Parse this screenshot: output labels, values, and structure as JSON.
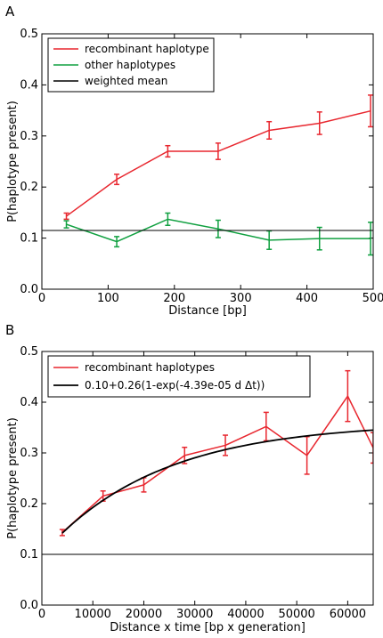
{
  "chart_data": [
    {
      "panel": "A",
      "type": "line",
      "xlabel": "Distance [bp]",
      "ylabel": "P(haplotype present)",
      "xlim": [
        0,
        500
      ],
      "ylim": [
        0.0,
        0.5
      ],
      "xticks": [
        0,
        100,
        200,
        300,
        400,
        500
      ],
      "xtick_labels": [
        "0",
        "100",
        "200",
        "300",
        "400",
        "500"
      ],
      "yticks": [
        0.0,
        0.1,
        0.2,
        0.3,
        0.4,
        0.5
      ],
      "ytick_labels": [
        "0.0",
        "0.1",
        "0.2",
        "0.3",
        "0.4",
        "0.5"
      ],
      "grid": false,
      "legend_position": "top-left",
      "series": [
        {
          "name": "recombinant haplotype",
          "color": "#e8272f",
          "errorbars": true,
          "points": [
            {
              "x": 37,
              "y": 0.143,
              "err": 0.006
            },
            {
              "x": 113,
              "y": 0.215,
              "err": 0.01
            },
            {
              "x": 190,
              "y": 0.27,
              "err": 0.011
            },
            {
              "x": 266,
              "y": 0.27,
              "err": 0.016
            },
            {
              "x": 343,
              "y": 0.311,
              "err": 0.017
            },
            {
              "x": 419,
              "y": 0.325,
              "err": 0.022
            },
            {
              "x": 496,
              "y": 0.349,
              "err": 0.031
            }
          ]
        },
        {
          "name": "other haplotypes",
          "color": "#10a040",
          "errorbars": true,
          "points": [
            {
              "x": 37,
              "y": 0.127,
              "err": 0.007
            },
            {
              "x": 113,
              "y": 0.093,
              "err": 0.01
            },
            {
              "x": 190,
              "y": 0.137,
              "err": 0.012
            },
            {
              "x": 266,
              "y": 0.118,
              "err": 0.017
            },
            {
              "x": 343,
              "y": 0.096,
              "err": 0.018
            },
            {
              "x": 419,
              "y": 0.099,
              "err": 0.022
            },
            {
              "x": 496,
              "y": 0.099,
              "err": 0.032
            }
          ]
        },
        {
          "name": "weighted mean",
          "color": "#000000",
          "hline": 0.115
        }
      ]
    },
    {
      "panel": "B",
      "type": "line",
      "xlabel": "Distance x time [bp x generation]",
      "ylabel": "P(haplotype present)",
      "xlim": [
        0,
        65000
      ],
      "ylim": [
        0.0,
        0.5
      ],
      "xticks": [
        0,
        10000,
        20000,
        30000,
        40000,
        50000,
        60000
      ],
      "xtick_labels": [
        "0",
        "10000",
        "20000",
        "30000",
        "40000",
        "50000",
        "60000"
      ],
      "yticks": [
        0.0,
        0.1,
        0.2,
        0.3,
        0.4,
        0.5
      ],
      "ytick_labels": [
        "0.0",
        "0.1",
        "0.2",
        "0.3",
        "0.4",
        "0.5"
      ],
      "grid": false,
      "legend_position": "top-left",
      "hline": 0.1,
      "series": [
        {
          "name": "recombinant haplotypes",
          "color": "#e8272f",
          "errorbars": true,
          "points": [
            {
              "x": 4000,
              "y": 0.143,
              "err": 0.006
            },
            {
              "x": 12000,
              "y": 0.215,
              "err": 0.01
            },
            {
              "x": 20000,
              "y": 0.237,
              "err": 0.014
            },
            {
              "x": 28000,
              "y": 0.295,
              "err": 0.016
            },
            {
              "x": 36000,
              "y": 0.315,
              "err": 0.02
            },
            {
              "x": 44000,
              "y": 0.352,
              "err": 0.028
            },
            {
              "x": 52000,
              "y": 0.295,
              "err": 0.037
            },
            {
              "x": 60000,
              "y": 0.412,
              "err": 0.05
            },
            {
              "x": 65000,
              "y": 0.31,
              "err": 0.03
            }
          ]
        },
        {
          "name": "0.10+0.26(1-exp(-4.39e-05 d Δt))",
          "color": "#000000",
          "model": {
            "a": 0.1,
            "b": 0.26,
            "k": 4.39e-05
          },
          "x_from": 4000,
          "x_to": 65000
        }
      ]
    }
  ]
}
